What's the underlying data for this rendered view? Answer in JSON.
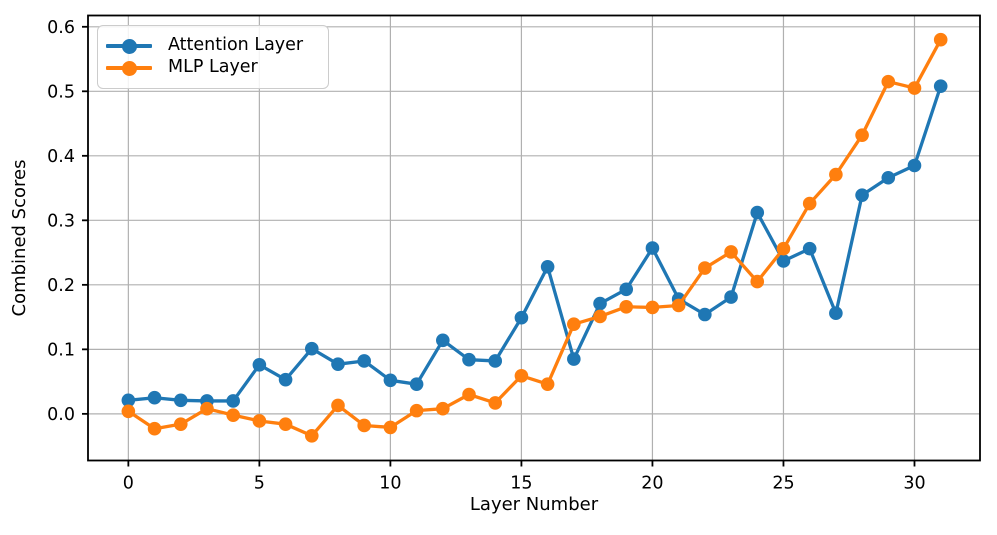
{
  "chart_data": {
    "type": "line",
    "title": "",
    "xlabel": "Layer Number",
    "ylabel": "Combined Scores",
    "x": [
      0,
      1,
      2,
      3,
      4,
      5,
      6,
      7,
      8,
      9,
      10,
      11,
      12,
      13,
      14,
      15,
      16,
      17,
      18,
      19,
      20,
      21,
      22,
      23,
      24,
      25,
      26,
      27,
      28,
      29,
      30,
      31
    ],
    "series": [
      {
        "name": "Attention Layer",
        "color": "#1f77b4",
        "marker": "circle",
        "values": [
          0.021,
          0.025,
          0.021,
          0.02,
          0.02,
          0.076,
          0.053,
          0.101,
          0.077,
          0.082,
          0.052,
          0.046,
          0.114,
          0.084,
          0.082,
          0.149,
          0.228,
          0.085,
          0.171,
          0.193,
          0.257,
          0.178,
          0.154,
          0.181,
          0.312,
          0.237,
          0.256,
          0.156,
          0.339,
          0.366,
          0.385,
          0.508
        ]
      },
      {
        "name": "MLP Layer",
        "color": "#ff7f0e",
        "marker": "circle",
        "values": [
          0.004,
          -0.023,
          -0.016,
          0.008,
          -0.002,
          -0.011,
          -0.016,
          -0.034,
          0.013,
          -0.018,
          -0.021,
          0.005,
          0.008,
          0.03,
          0.017,
          0.059,
          0.046,
          0.139,
          0.151,
          0.166,
          0.165,
          0.168,
          0.226,
          0.251,
          0.205,
          0.256,
          0.326,
          0.371,
          0.432,
          0.515,
          0.505,
          0.58
        ]
      }
    ],
    "xticks": {
      "values": [
        0,
        5,
        10,
        15,
        20,
        25,
        30
      ],
      "labels": [
        "0",
        "5",
        "10",
        "15",
        "20",
        "25",
        "30"
      ]
    },
    "yticks": {
      "values": [
        0.0,
        0.1,
        0.2,
        0.3,
        0.4,
        0.5,
        0.6
      ],
      "labels": [
        "0.0",
        "0.1",
        "0.2",
        "0.3",
        "0.4",
        "0.5",
        "0.6"
      ]
    },
    "xlim": [
      -1.54,
      32.5
    ],
    "ylim": [
      -0.0723,
      0.6175
    ],
    "grid": true,
    "grid_color": "#b0b0b0",
    "frame_color": "#000000",
    "legend_position": "upper left"
  }
}
